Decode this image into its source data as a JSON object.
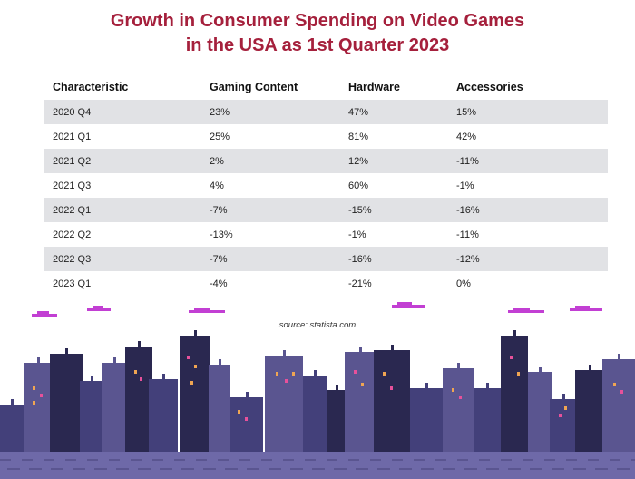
{
  "chart_data": {
    "type": "table",
    "title_lines": [
      "Growth in Consumer Spending on Video Games",
      "in the USA as 1st Quarter 2023"
    ],
    "columns": [
      "Characteristic",
      "Gaming Content",
      "Hardware",
      "Accessories"
    ],
    "rows": [
      [
        "2020 Q4",
        "23%",
        "47%",
        "15%"
      ],
      [
        "2021 Q1",
        "25%",
        "81%",
        "42%"
      ],
      [
        "2021 Q2",
        "2%",
        "12%",
        "-11%"
      ],
      [
        "2021 Q3",
        "4%",
        "60%",
        "-1%"
      ],
      [
        "2022 Q1",
        "-7%",
        "-15%",
        "-16%"
      ],
      [
        "2022 Q2",
        "-13%",
        "-1%",
        "-11%"
      ],
      [
        "2022 Q3",
        "-7%",
        "-16%",
        "-12%"
      ],
      [
        "2023 Q1",
        "-4%",
        "-21%",
        "0%"
      ]
    ],
    "source": "source: statista.com"
  },
  "colors": {
    "title": "#a5203c",
    "row_shade": "#e1e2e5",
    "building_dark": "#2a2850",
    "building_mid": "#43407a",
    "building_light": "#5a5590",
    "street": "#6e69a8",
    "cloud": "#c23fd3",
    "window_orange": "#f0a552",
    "window_pink": "#e7519b"
  },
  "decoration": "pixel-art-city-skyline"
}
